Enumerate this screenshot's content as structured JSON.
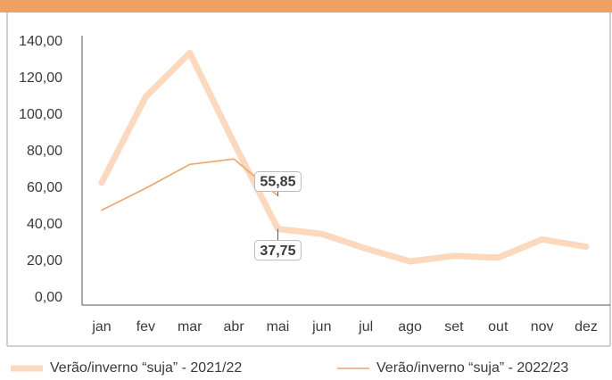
{
  "chart_data": {
    "type": "line",
    "categories": [
      "jan",
      "fev",
      "mar",
      "abr",
      "mai",
      "jun",
      "jul",
      "ago",
      "set",
      "out",
      "nov",
      "dez"
    ],
    "series": [
      {
        "name": "Verão/inverno “suja” - 2021/22",
        "color": "#fcd9bd",
        "values": [
          63,
          110,
          134,
          85,
          37.75,
          35,
          27,
          20,
          23,
          22,
          32,
          28
        ],
        "value_labels": [
          null,
          null,
          null,
          null,
          "37,75",
          null,
          null,
          null,
          null,
          null,
          null,
          null
        ]
      },
      {
        "name": "Verão/inverno “suja” - 2022/23",
        "color": "#f0a468",
        "values": [
          48,
          60,
          73,
          76,
          55.85,
          null,
          null,
          null,
          null,
          null,
          null,
          null
        ],
        "value_labels": [
          null,
          null,
          null,
          null,
          "55,85",
          null,
          null,
          null,
          null,
          null,
          null,
          null
        ]
      }
    ],
    "ylim": [
      0,
      140
    ],
    "yticks": [
      {
        "value": 0,
        "label": "0,00"
      },
      {
        "value": 20,
        "label": "20,00"
      },
      {
        "value": 40,
        "label": "40,00"
      },
      {
        "value": 60,
        "label": "60,00"
      },
      {
        "value": 80,
        "label": "80,00"
      },
      {
        "value": 100,
        "label": "100,00"
      },
      {
        "value": 120,
        "label": "120,00"
      },
      {
        "value": 140,
        "label": "140,00"
      }
    ],
    "grid": false
  }
}
